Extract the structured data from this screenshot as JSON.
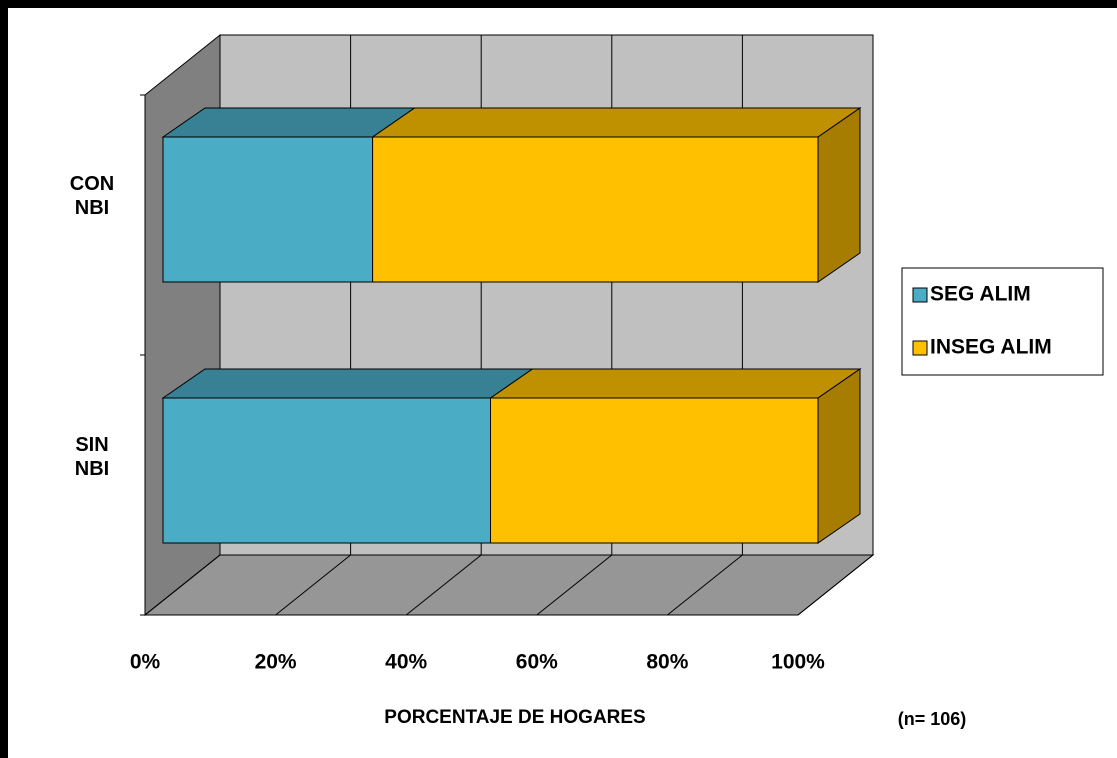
{
  "chart_data": {
    "type": "bar3d_stacked_horizontal",
    "categories": [
      "CON NBI",
      "SIN NBI"
    ],
    "series": [
      {
        "name": "SEG ALIM",
        "color": "#4bacc6",
        "values": [
          32,
          50
        ]
      },
      {
        "name": "INSEG ALIM",
        "color": "#ffc000",
        "values": [
          68,
          50
        ]
      }
    ],
    "xlim": [
      0,
      100
    ],
    "xticks": [
      {
        "value": 0,
        "label": "0%"
      },
      {
        "value": 20,
        "label": "20%"
      },
      {
        "value": 40,
        "label": "40%"
      },
      {
        "value": 60,
        "label": "60%"
      },
      {
        "value": 80,
        "label": "80%"
      },
      {
        "value": 100,
        "label": "100%"
      }
    ],
    "xlabel": "PORCENTAJE DE HOGARES",
    "annotation": "(n= 106)",
    "grid": true,
    "legend": "right"
  }
}
